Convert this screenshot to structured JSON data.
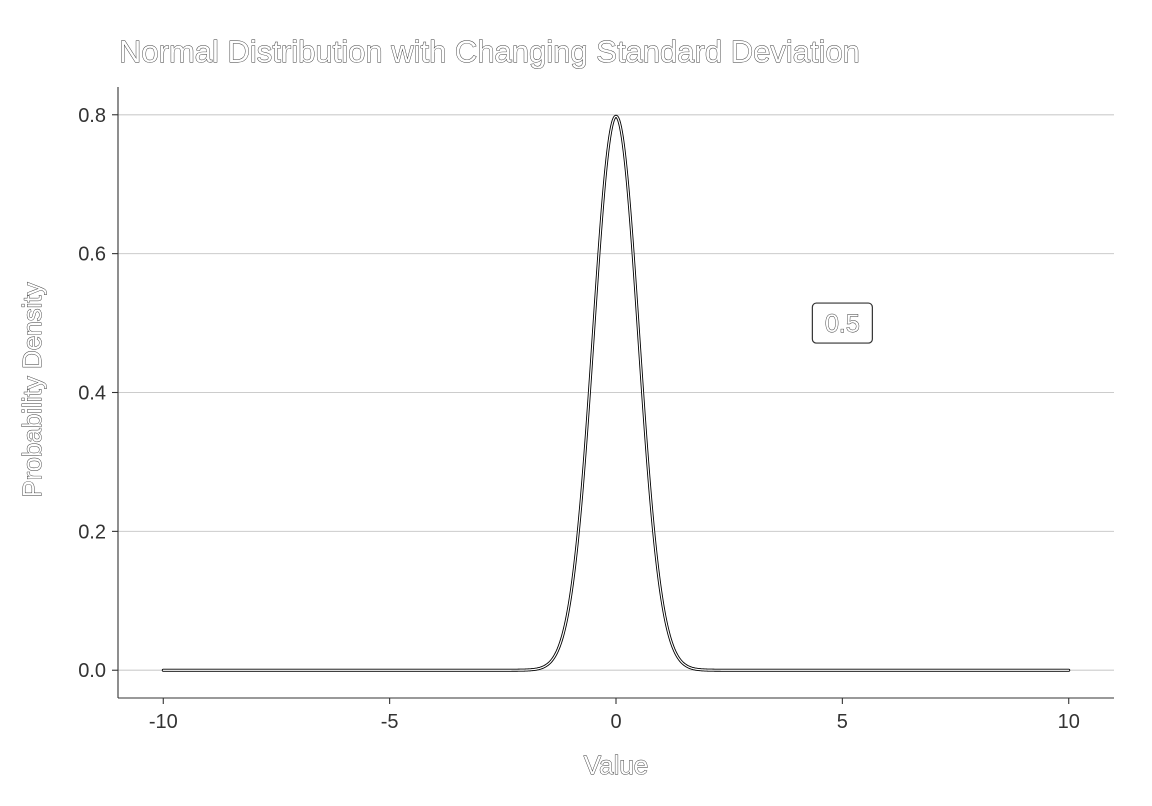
{
  "chart_data": {
    "type": "line",
    "title": "Normal Distribution with Changing Standard Deviation",
    "xlabel": "Value",
    "ylabel": "Probability Density",
    "xlim": [
      -11,
      11
    ],
    "ylim": [
      -0.04,
      0.84
    ],
    "x_ticks": [
      -10,
      -5,
      0,
      5,
      10
    ],
    "x_tick_labels": [
      "-10",
      "-5",
      "0",
      "5",
      "10"
    ],
    "y_ticks": [
      0.0,
      0.2,
      0.4,
      0.6,
      0.8
    ],
    "y_tick_labels": [
      "0.0",
      "0.2",
      "0.4",
      "0.6",
      "0.8"
    ],
    "grid": "horizontal-major",
    "legend": "none",
    "series": [
      {
        "distribution": "normal",
        "mean": 0,
        "sd": 0.5,
        "x": [
          -10,
          -5,
          -3,
          -2.5,
          -2,
          -1.75,
          -1.5,
          -1.25,
          -1,
          -0.75,
          -0.5,
          -0.25,
          0,
          0.25,
          0.5,
          0.75,
          1,
          1.25,
          1.5,
          1.75,
          2,
          2.5,
          3,
          5,
          10
        ],
        "y": [
          0.0,
          0.0,
          0.0,
          0.0,
          0.0003,
          0.0017,
          0.0089,
          0.035,
          0.108,
          0.259,
          0.484,
          0.704,
          0.798,
          0.704,
          0.484,
          0.259,
          0.108,
          0.035,
          0.0089,
          0.0017,
          0.0003,
          0.0,
          0.0,
          0.0,
          0.0
        ]
      }
    ],
    "annotation": {
      "text": "0.5",
      "x": 5,
      "y": 0.5
    },
    "colors": {
      "line": "#000000",
      "grid": "#cccccc",
      "axis": "#333333",
      "text": "#333333"
    }
  }
}
